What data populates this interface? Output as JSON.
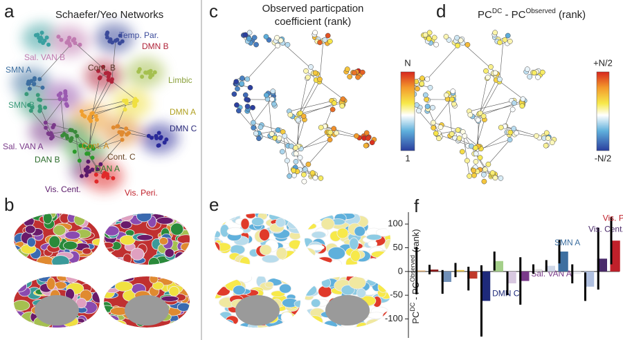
{
  "panels": {
    "a": {
      "letter": "a",
      "title": "Schaefer/Yeo Networks",
      "networks": [
        "Temp. Par.",
        "DMN B",
        "Sal. VAN B",
        "SMN A",
        "Cont. B",
        "Limbic",
        "SMN B",
        "DMN A",
        "DMN C",
        "Sal. VAN A",
        "Cont. A",
        "Cont. C",
        "DAN B",
        "DAN A",
        "Vis. Cent.",
        "Vis. Peri."
      ]
    },
    "b": {
      "letter": "b"
    },
    "c": {
      "letter": "c",
      "title": [
        "Observed particpation",
        "coefficient (rank)"
      ],
      "colorbar_top": "N",
      "colorbar_bottom": "1"
    },
    "d": {
      "letter": "d",
      "title": [
        "PC",
        "DC",
        " - PC",
        "Observed",
        " (rank)"
      ],
      "colorbar_top": "+N/2",
      "colorbar_bottom": "-N/2"
    },
    "e": {
      "letter": "e"
    },
    "f": {
      "letter": "f"
    }
  },
  "chart_data": {
    "type": "bar",
    "y_label": [
      "PC",
      "DC",
      " - PC",
      "Observed",
      " (rank)"
    ],
    "categories": [
      null,
      null,
      null,
      null,
      null,
      "DMN C",
      null,
      null,
      "Sal. VAN A",
      null,
      null,
      "SMN A",
      null,
      null,
      "Vis. Cent.",
      "Vis. Peri."
    ],
    "values": [
      2,
      4,
      -22,
      3,
      -15,
      -62,
      22,
      -25,
      -20,
      5,
      12,
      42,
      -5,
      -32,
      27,
      65
    ],
    "errors": [
      50,
      10,
      25,
      15,
      25,
      75,
      20,
      25,
      50,
      10,
      12,
      25,
      20,
      30,
      65,
      50
    ],
    "colors": [
      "#e8b070",
      "#8b1a1a",
      "#7090b8",
      "#e7c34a",
      "#c0392b",
      "#1e2a7a",
      "#a5d08a",
      "#d8c8e0",
      "#7a3a8a",
      "#e0e0e0",
      "#d0d8e8",
      "#3d6fa0",
      "#e8e8f0",
      "#b0c0e0",
      "#4a2a6a",
      "#c0202a"
    ],
    "ylim": [
      -140,
      125
    ],
    "yticks": [
      -100,
      -50,
      0,
      50,
      100
    ]
  }
}
